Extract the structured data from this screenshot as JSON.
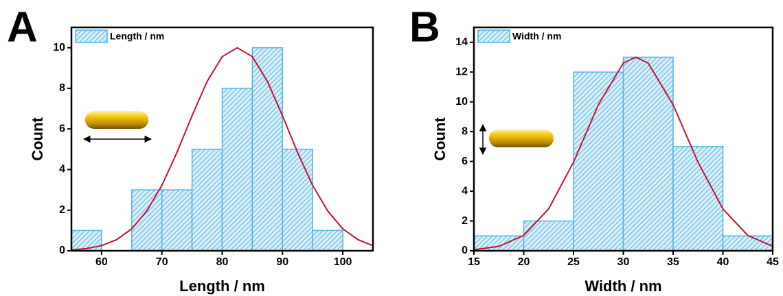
{
  "chart_data": [
    {
      "type": "histogram",
      "panel_label": "A",
      "xlabel": "Length / nm",
      "ylabel": "Count",
      "bins": [
        55,
        60,
        65,
        70,
        75,
        80,
        85,
        90,
        95,
        100
      ],
      "series": [
        {
          "name": "Length / nm",
          "color": "#4fb3e6",
          "values": [
            1,
            0,
            3,
            3,
            5,
            8,
            10,
            5,
            1
          ]
        }
      ],
      "fit": {
        "color": "#c8102e",
        "x": [
          55,
          57.5,
          60,
          62.5,
          65,
          67.5,
          70,
          72.5,
          75,
          77.5,
          80,
          82.5,
          85,
          87.5,
          90,
          92.5,
          95,
          97.5,
          100,
          102.5,
          105
        ],
        "values": [
          0.04,
          0.11,
          0.25,
          0.55,
          1.08,
          1.96,
          3.22,
          4.84,
          6.65,
          8.34,
          9.56,
          10,
          9.56,
          8.34,
          6.65,
          4.84,
          3.22,
          1.96,
          1.08,
          0.55,
          0.25
        ]
      },
      "xlim": [
        55,
        105
      ],
      "xticks": [
        60,
        70,
        80,
        90,
        100
      ],
      "ylim": [
        0,
        11
      ],
      "yticks": [
        0,
        2,
        4,
        6,
        8,
        10
      ],
      "legend": "upper left"
    },
    {
      "type": "histogram",
      "panel_label": "B",
      "xlabel": "Width / nm",
      "ylabel": "Count",
      "bins": [
        15,
        20,
        25,
        30,
        35,
        40,
        45
      ],
      "series": [
        {
          "name": "Width / nm",
          "color": "#4fb3e6",
          "values": [
            1,
            2,
            12,
            13,
            7,
            1
          ]
        }
      ],
      "fit": {
        "color": "#c8102e",
        "x": [
          15,
          17.5,
          20,
          22.5,
          25,
          27.5,
          30,
          31.25,
          32.5,
          35,
          37.5,
          40,
          42.5,
          45
        ],
        "values": [
          0.07,
          0.3,
          1.03,
          2.81,
          5.95,
          9.81,
          12.6,
          13,
          12.6,
          9.81,
          5.95,
          2.81,
          1.03,
          0.3
        ]
      },
      "xlim": [
        15,
        45
      ],
      "xticks": [
        15,
        20,
        25,
        30,
        35,
        40,
        45
      ],
      "ylim": [
        0,
        15
      ],
      "yticks": [
        0,
        2,
        4,
        6,
        8,
        10,
        12,
        14
      ],
      "legend": "upper left"
    }
  ]
}
